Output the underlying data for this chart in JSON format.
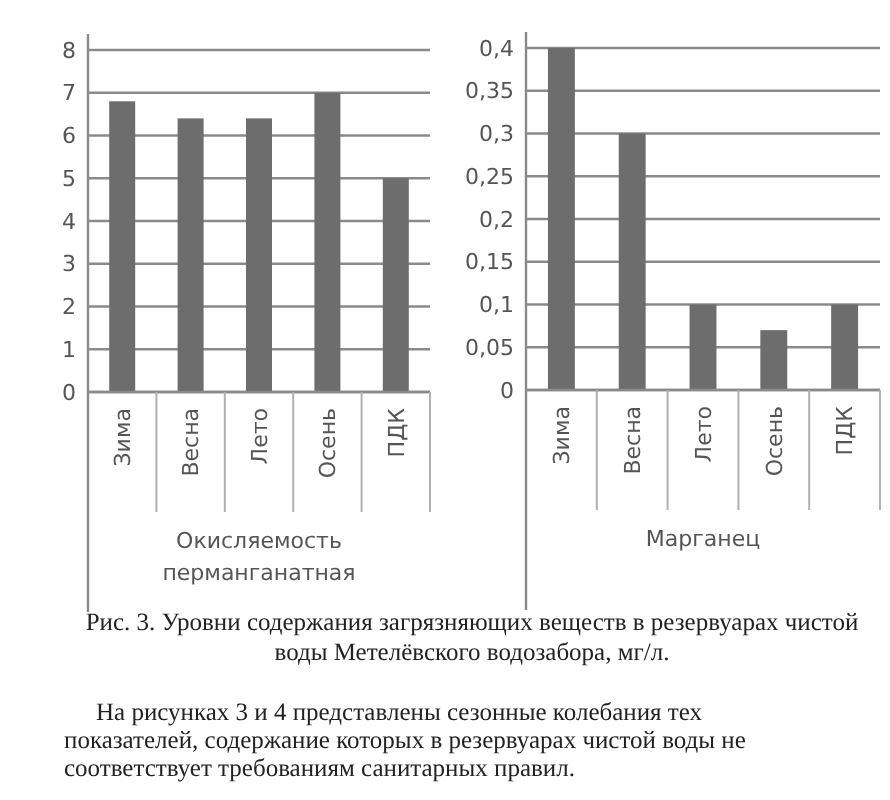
{
  "chart_data": [
    {
      "type": "bar",
      "xlabel": "Окисляемость перманганатная",
      "categories": [
        "Зима",
        "Весна",
        "Лето",
        "Осень",
        "ПДК"
      ],
      "values": [
        6.8,
        6.4,
        6.4,
        7,
        5
      ],
      "color": "#6d6d6d",
      "ylim": [
        0,
        8
      ],
      "yticks": [
        0,
        1,
        2,
        3,
        4,
        5,
        6,
        7,
        8
      ],
      "grid": "y"
    },
    {
      "type": "bar",
      "xlabel": "Марганец",
      "categories": [
        "Зима",
        "Весна",
        "Лето",
        "Осень",
        "ПДК"
      ],
      "values": [
        0.4,
        0.3,
        0.1,
        0.07,
        0.1
      ],
      "color": "#6d6d6d",
      "ylim": [
        0,
        0.4
      ],
      "yticks": [
        {
          "value": 0,
          "label": "0"
        },
        {
          "value": 0.05,
          "label": "0,05"
        },
        {
          "value": 0.1,
          "label": "0,1"
        },
        {
          "value": 0.15,
          "label": "0,15"
        },
        {
          "value": 0.2,
          "label": "0,2"
        },
        {
          "value": 0.25,
          "label": "0,25"
        },
        {
          "value": 0.3,
          "label": "0,3"
        },
        {
          "value": 0.35,
          "label": "0,35"
        },
        {
          "value": 0.4,
          "label": "0,4"
        }
      ],
      "grid": "y",
      "annotations": [
        "Рис. 3. Уровни содержания загрязняющих веществ в резервуарах чистой воды Метелёвского водозабора, мг/л.",
        "На рисунках 3 и 4 представлены сезонные колебания тех показателей, содержание которых в резервуарах чистой воды не соответствует требованиям санитарных правил."
      ]
    }
  ]
}
